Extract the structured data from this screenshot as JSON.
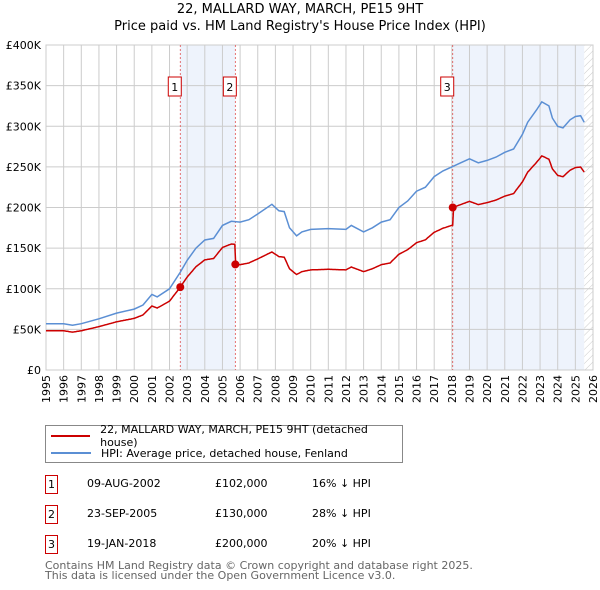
{
  "chart_data": {
    "type": "line",
    "title": "22, MALLARD WAY, MARCH, PE15 9HT",
    "subtitle": "Price paid vs. HM Land Registry's House Price Index (HPI)",
    "xlim": [
      1995,
      2026
    ],
    "ylim": [
      0,
      400000
    ],
    "x_ticks": [
      "1995",
      "1996",
      "1997",
      "1998",
      "1999",
      "2000",
      "2001",
      "2002",
      "2003",
      "2004",
      "2005",
      "2006",
      "2007",
      "2008",
      "2009",
      "2010",
      "2011",
      "2012",
      "2013",
      "2014",
      "2015",
      "2016",
      "2017",
      "2018",
      "2019",
      "2020",
      "2021",
      "2022",
      "2023",
      "2024",
      "2025",
      "2026"
    ],
    "y_ticks": [
      {
        "v": 0,
        "label": "£0"
      },
      {
        "v": 50000,
        "label": "£50K"
      },
      {
        "v": 100000,
        "label": "£100K"
      },
      {
        "v": 150000,
        "label": "£150K"
      },
      {
        "v": 200000,
        "label": "£200K"
      },
      {
        "v": 250000,
        "label": "£250K"
      },
      {
        "v": 300000,
        "label": "£300K"
      },
      {
        "v": 350000,
        "label": "£350K"
      },
      {
        "v": 400000,
        "label": "£400K"
      }
    ],
    "grid": true,
    "data_end": 2025.5,
    "series": [
      {
        "name": "22, MALLARD WAY, MARCH, PE15 9HT (detached house)",
        "color": "#cc0000",
        "derived_from_sales": true
      },
      {
        "name": "HPI: Average price, detached house, Fenland",
        "color": "#5b8fd4",
        "x": [
          1995,
          1996,
          1996.5,
          1997,
          1998,
          1999,
          2000,
          2000.5,
          2001,
          2001.3,
          2002,
          2002.6,
          2003,
          2003.5,
          2004,
          2004.5,
          2005,
          2005.5,
          2006,
          2006.5,
          2007,
          2007.8,
          2008.2,
          2008.5,
          2008.8,
          2009.2,
          2009.5,
          2010,
          2011,
          2012,
          2012.3,
          2013,
          2013.5,
          2014,
          2014.5,
          2015,
          2015.5,
          2016,
          2016.5,
          2017,
          2017.5,
          2018,
          2018.5,
          2019,
          2019.5,
          2020,
          2020.5,
          2021,
          2021.5,
          2022,
          2022.3,
          2022.8,
          2023.1,
          2023.5,
          2023.7,
          2024,
          2024.3,
          2024.7,
          2025,
          2025.3,
          2025.5
        ],
        "y": [
          57000,
          57000,
          55000,
          57000,
          63000,
          70000,
          75000,
          80000,
          93000,
          90000,
          100000,
          120000,
          135000,
          150000,
          160000,
          162000,
          178000,
          183000,
          182000,
          185000,
          192000,
          204000,
          196000,
          195000,
          175000,
          165000,
          170000,
          173000,
          174000,
          173000,
          178000,
          170000,
          175000,
          182000,
          185000,
          200000,
          208000,
          220000,
          225000,
          238000,
          245000,
          250000,
          255000,
          260000,
          255000,
          258000,
          262000,
          268000,
          272000,
          290000,
          305000,
          320000,
          330000,
          325000,
          310000,
          300000,
          298000,
          308000,
          312000,
          313000,
          305000
        ]
      }
    ],
    "sales": [
      {
        "n": "1",
        "x": 2002.61,
        "date": "09-AUG-2002",
        "price": 102000,
        "price_label": "£102,000",
        "hpi": "16% ↓ HPI"
      },
      {
        "n": "2",
        "x": 2005.73,
        "date": "23-SEP-2005",
        "price": 130000,
        "price_label": "£130,000",
        "hpi": "28% ↓ HPI"
      },
      {
        "n": "3",
        "x": 2018.05,
        "date": "19-JAN-2018",
        "price": 200000,
        "price_label": "£200,000",
        "hpi": "20% ↓ HPI"
      }
    ]
  },
  "footer": [
    "Contains HM Land Registry data © Crown copyright and database right 2025.",
    "This data is licensed under the Open Government Licence v3.0."
  ]
}
